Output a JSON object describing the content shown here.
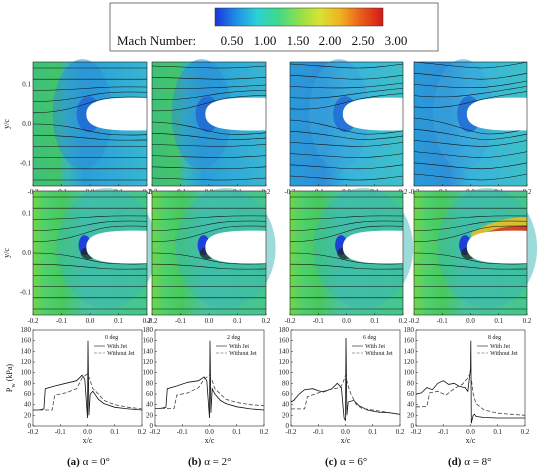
{
  "colorbar": {
    "label": "Mach Number:",
    "ticks": [
      "0.50",
      "1.00",
      "1.50",
      "2.00",
      "2.50",
      "3.00"
    ],
    "stops": [
      "#1a33d9",
      "#1e8fe6",
      "#2ad1d6",
      "#3fd98a",
      "#8ee04a",
      "#d9e233",
      "#f0b020",
      "#e85a1a",
      "#d41818"
    ]
  },
  "field_axes": {
    "x_ticks": [
      "-0.2",
      "-0.1",
      "0.0",
      "0.1",
      "0.2"
    ],
    "y_ticks": [
      "0.1",
      "0.0",
      "-0.1"
    ],
    "y_label": "y/c"
  },
  "pressure_axes": {
    "x_ticks": [
      "-0.2",
      "-0.1",
      "0.0",
      "0.1",
      "0.2"
    ],
    "y_ticks": [
      "0",
      "20",
      "40",
      "60",
      "80",
      "100",
      "120",
      "140",
      "160",
      "180"
    ],
    "y_label": "P",
    "y_label_sub": "w",
    "y_label_unit": " (kPa)",
    "x_label": "x/c",
    "legend": [
      "With Jet",
      "Without Jet"
    ]
  },
  "panels": [
    {
      "angle": "0 deg",
      "caption_letter": "(a)",
      "caption_eq": " α = 0°"
    },
    {
      "angle": "2 deg",
      "caption_letter": "(b)",
      "caption_eq": " α = 2°"
    },
    {
      "angle": "6 deg",
      "caption_letter": "(c)",
      "caption_eq": " α = 6°"
    },
    {
      "angle": "8 deg",
      "caption_letter": "(d)",
      "caption_eq": " α = 8°"
    }
  ],
  "chart_data": [
    {
      "type": "line",
      "title": "0 deg",
      "xlabel": "x/c",
      "ylabel": "Pw (kPa)",
      "xlim": [
        -0.2,
        0.2
      ],
      "ylim": [
        0,
        180
      ],
      "series": [
        {
          "name": "With Jet",
          "x": [
            -0.2,
            -0.18,
            -0.16,
            -0.155,
            -0.12,
            -0.08,
            -0.04,
            -0.02,
            -0.01,
            0.0,
            0.002,
            0.005,
            0.01,
            0.02,
            0.04,
            0.06,
            0.1,
            0.15,
            0.2
          ],
          "y": [
            30,
            30,
            32,
            70,
            75,
            80,
            85,
            95,
            88,
            15,
            160,
            20,
            60,
            65,
            50,
            42,
            35,
            32,
            30
          ]
        },
        {
          "name": "Without Jet",
          "x": [
            -0.2,
            -0.16,
            -0.13,
            -0.12,
            -0.08,
            -0.04,
            -0.02,
            0.0,
            0.01,
            0.02,
            0.04,
            0.06,
            0.1,
            0.15,
            0.2
          ],
          "y": [
            30,
            30,
            30,
            58,
            62,
            70,
            90,
            98,
            85,
            70,
            60,
            48,
            40,
            35,
            32
          ]
        }
      ]
    },
    {
      "type": "line",
      "title": "2 deg",
      "xlabel": "x/c",
      "ylabel": "Pw (kPa)",
      "xlim": [
        -0.2,
        0.2
      ],
      "ylim": [
        0,
        180
      ],
      "series": [
        {
          "name": "With Jet",
          "x": [
            -0.2,
            -0.18,
            -0.16,
            -0.155,
            -0.12,
            -0.08,
            -0.04,
            -0.02,
            -0.01,
            0.0,
            0.002,
            0.005,
            0.01,
            0.02,
            0.04,
            0.06,
            0.1,
            0.15,
            0.2
          ],
          "y": [
            33,
            33,
            35,
            70,
            75,
            82,
            85,
            92,
            85,
            15,
            160,
            25,
            70,
            60,
            48,
            42,
            36,
            32,
            30
          ]
        },
        {
          "name": "Without Jet",
          "x": [
            -0.2,
            -0.16,
            -0.13,
            -0.12,
            -0.08,
            -0.04,
            -0.02,
            0.0,
            0.01,
            0.02,
            0.04,
            0.06,
            0.1,
            0.15,
            0.2
          ],
          "y": [
            33,
            33,
            33,
            58,
            62,
            72,
            88,
            95,
            85,
            70,
            60,
            50,
            44,
            40,
            38
          ]
        }
      ]
    },
    {
      "type": "line",
      "title": "6 deg",
      "xlabel": "x/c",
      "ylabel": "Pw (kPa)",
      "xlim": [
        -0.2,
        0.2
      ],
      "ylim": [
        0,
        180
      ],
      "series": [
        {
          "name": "With Jet",
          "x": [
            -0.2,
            -0.19,
            -0.17,
            -0.15,
            -0.12,
            -0.1,
            -0.08,
            -0.05,
            -0.03,
            -0.015,
            -0.005,
            0.0,
            0.002,
            0.005,
            0.01,
            0.03,
            0.05,
            0.08,
            0.12,
            0.16,
            0.2
          ],
          "y": [
            45,
            48,
            60,
            68,
            70,
            66,
            64,
            70,
            80,
            72,
            15,
            10,
            165,
            20,
            45,
            48,
            38,
            30,
            26,
            25,
            22
          ]
        },
        {
          "name": "Without Jet",
          "x": [
            -0.2,
            -0.16,
            -0.15,
            -0.14,
            -0.1,
            -0.06,
            -0.02,
            -0.01,
            0.0,
            0.01,
            0.02,
            0.04,
            0.06,
            0.1,
            0.15,
            0.2
          ],
          "y": [
            32,
            32,
            32,
            55,
            62,
            68,
            72,
            80,
            95,
            75,
            60,
            40,
            33,
            30,
            26,
            22
          ]
        }
      ]
    },
    {
      "type": "line",
      "title": "8 deg",
      "xlabel": "x/c",
      "ylabel": "Pw (kPa)",
      "xlim": [
        -0.2,
        0.2
      ],
      "ylim": [
        0,
        180
      ],
      "series": [
        {
          "name": "With Jet",
          "x": [
            -0.2,
            -0.18,
            -0.16,
            -0.14,
            -0.12,
            -0.1,
            -0.08,
            -0.06,
            -0.04,
            -0.02,
            -0.01,
            0.0,
            0.001,
            0.003,
            0.006,
            0.01,
            0.015,
            0.02,
            0.05,
            0.1,
            0.15,
            0.2
          ],
          "y": [
            60,
            62,
            72,
            68,
            80,
            85,
            78,
            80,
            74,
            72,
            65,
            108,
            160,
            5,
            12,
            20,
            22,
            18,
            16,
            15,
            15,
            15
          ]
        },
        {
          "name": "Without Jet",
          "x": [
            -0.2,
            -0.18,
            -0.16,
            -0.15,
            -0.12,
            -0.09,
            -0.06,
            -0.03,
            -0.01,
            0.0,
            0.01,
            0.02,
            0.05,
            0.1,
            0.15,
            0.2
          ],
          "y": [
            36,
            36,
            37,
            62,
            65,
            58,
            70,
            78,
            90,
            100,
            60,
            42,
            30,
            24,
            22,
            20
          ]
        }
      ]
    }
  ]
}
